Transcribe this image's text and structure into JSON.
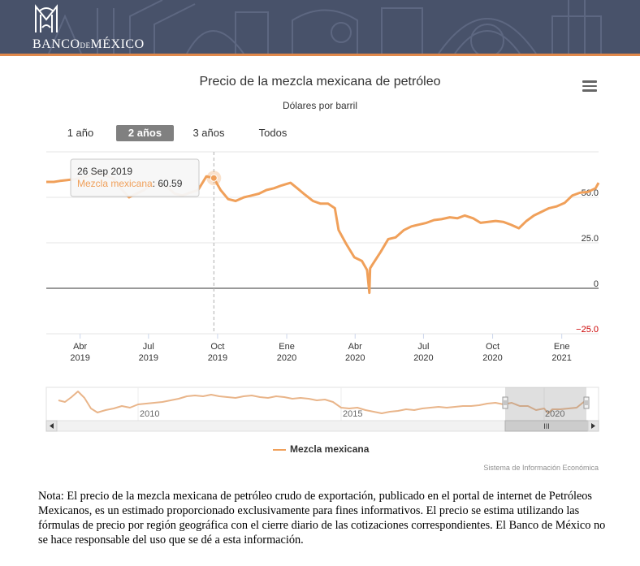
{
  "header": {
    "logo_text_left": "BANCO",
    "logo_text_small": "DE",
    "logo_text_right": "MÉXICO",
    "background_color": "#48526a",
    "accent_color": "#e0884a"
  },
  "toolbar": {
    "menu_icon": "hamburger-menu-icon"
  },
  "range_selector": {
    "buttons": [
      {
        "label": "1 año",
        "active": false
      },
      {
        "label": "2 años",
        "active": true
      },
      {
        "label": "3 años",
        "active": false
      },
      {
        "label": "Todos",
        "active": false
      }
    ]
  },
  "tooltip": {
    "date": "26 Sep 2019",
    "series": "Mezcla mexicana",
    "value": "60.59"
  },
  "navigator": {
    "labels": [
      "2010",
      "2015",
      "2020"
    ],
    "scroll_grip": "III"
  },
  "credit": "Sistema de Información Económica",
  "note": "Nota: El precio de la mezcla mexicana de petróleo crudo de exportación, publicado en el portal de internet de Petróleos Mexicanos, es un estimado proporcionado exclusivamente para fines informativos. El precio se estima utilizando las fórmulas de precio por región geográfica con el cierre diario de las cotizaciones correspondientes. El Banco de México no se hace responsable del uso que se dé a esta información.",
  "chart_data": {
    "type": "line",
    "title": "Precio de la mezcla mexicana de petróleo",
    "subtitle": "Dólares por barril",
    "color": "#f0a05a",
    "ylim": [
      -25,
      75
    ],
    "y_ticks": [
      {
        "value": 50,
        "label": "50.0"
      },
      {
        "value": 25,
        "label": "25.0"
      },
      {
        "value": 0,
        "label": "0"
      },
      {
        "value": -25,
        "label": "−25.0"
      }
    ],
    "x_ticks": [
      {
        "date": "2019-04-01",
        "month": "Abr",
        "year": "2019"
      },
      {
        "date": "2019-07-01",
        "month": "Jul",
        "year": "2019"
      },
      {
        "date": "2019-10-01",
        "month": "Oct",
        "year": "2019"
      },
      {
        "date": "2020-01-01",
        "month": "Ene",
        "year": "2020"
      },
      {
        "date": "2020-04-01",
        "month": "Abr",
        "year": "2020"
      },
      {
        "date": "2020-07-01",
        "month": "Jul",
        "year": "2020"
      },
      {
        "date": "2020-10-01",
        "month": "Oct",
        "year": "2020"
      },
      {
        "date": "2021-01-01",
        "month": "Ene",
        "year": "2021"
      }
    ],
    "xlim": [
      "2019-02-15",
      "2021-02-19"
    ],
    "legend": {
      "placement": "bottom-center"
    },
    "series": [
      {
        "name": "Mezcla mexicana",
        "x": [
          "2019-02-15",
          "2019-02-25",
          "2019-03-05",
          "2019-03-15",
          "2019-03-25",
          "2019-04-05",
          "2019-04-15",
          "2019-04-25",
          "2019-05-05",
          "2019-05-15",
          "2019-05-25",
          "2019-06-05",
          "2019-06-15",
          "2019-06-25",
          "2019-07-05",
          "2019-07-15",
          "2019-07-25",
          "2019-08-05",
          "2019-08-15",
          "2019-08-25",
          "2019-09-05",
          "2019-09-16",
          "2019-09-26",
          "2019-10-05",
          "2019-10-15",
          "2019-10-25",
          "2019-11-05",
          "2019-11-15",
          "2019-11-25",
          "2019-12-05",
          "2019-12-15",
          "2019-12-25",
          "2020-01-06",
          "2020-01-15",
          "2020-01-25",
          "2020-02-05",
          "2020-02-15",
          "2020-02-25",
          "2020-03-05",
          "2020-03-10",
          "2020-03-20",
          "2020-03-31",
          "2020-04-10",
          "2020-04-17",
          "2020-04-20",
          "2020-04-21",
          "2020-04-24",
          "2020-05-05",
          "2020-05-15",
          "2020-05-25",
          "2020-06-05",
          "2020-06-15",
          "2020-06-25",
          "2020-07-05",
          "2020-07-15",
          "2020-07-25",
          "2020-08-05",
          "2020-08-15",
          "2020-08-25",
          "2020-09-05",
          "2020-09-15",
          "2020-09-25",
          "2020-10-05",
          "2020-10-15",
          "2020-10-25",
          "2020-11-05",
          "2020-11-15",
          "2020-11-25",
          "2020-12-05",
          "2020-12-15",
          "2020-12-25",
          "2021-01-05",
          "2021-01-15",
          "2021-01-25",
          "2021-02-05",
          "2021-02-15",
          "2021-02-19"
        ],
        "values": [
          58.5,
          58.5,
          59.0,
          59.5,
          60.0,
          61.0,
          62.0,
          63.5,
          62.0,
          60.5,
          55.0,
          50.0,
          52.0,
          54.0,
          57.0,
          57.0,
          56.0,
          52.0,
          51.0,
          52.5,
          54.0,
          61.5,
          60.59,
          54.0,
          49.0,
          48.0,
          50.0,
          51.0,
          52.0,
          54.0,
          55.0,
          56.5,
          58.0,
          55.0,
          51.5,
          48.0,
          46.5,
          46.5,
          44.0,
          32.0,
          24.5,
          17.0,
          15.0,
          10.0,
          -2.5,
          11.0,
          13.0,
          20.0,
          27.0,
          28.0,
          32.0,
          34.0,
          35.0,
          36.0,
          37.5,
          38.0,
          39.0,
          38.5,
          40.0,
          38.5,
          36.0,
          36.5,
          37.0,
          36.5,
          35.0,
          33.0,
          37.0,
          40.0,
          42.0,
          44.0,
          45.0,
          47.0,
          51.0,
          52.5,
          53.0,
          55.0,
          58.0
        ]
      }
    ]
  }
}
